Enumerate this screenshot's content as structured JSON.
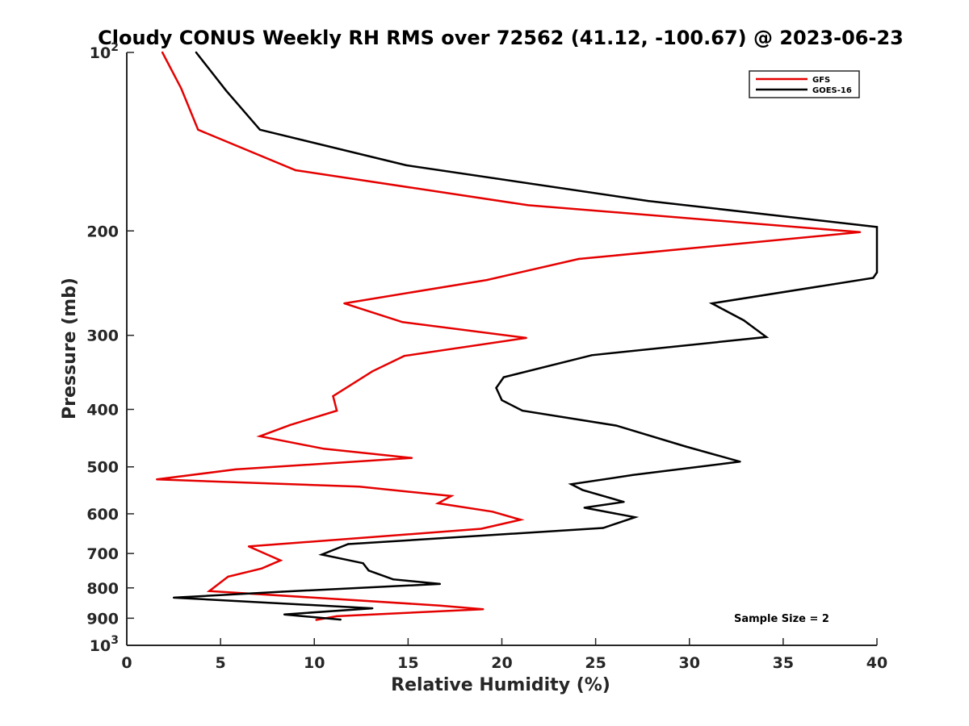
{
  "chart_data": {
    "type": "line",
    "title": "Cloudy CONUS Weekly RH RMS over 72562 (41.12, -100.67) @ 2023-06-23",
    "xlabel": "Relative Humidity (%)",
    "ylabel": "Pressure (mb)",
    "xlim": [
      0,
      40
    ],
    "ylim": [
      100,
      1000
    ],
    "y_scale": "log",
    "y_reversed": true,
    "x_ticks": [
      "0",
      "5",
      "10",
      "15",
      "20",
      "25",
      "30",
      "35",
      "40"
    ],
    "y_ticks": [
      {
        "value": 100,
        "base": "10",
        "exp": "2"
      },
      {
        "value": 200,
        "label": "200"
      },
      {
        "value": 300,
        "label": "300"
      },
      {
        "value": 400,
        "label": "400"
      },
      {
        "value": 500,
        "label": "500"
      },
      {
        "value": 600,
        "label": "600"
      },
      {
        "value": 700,
        "label": "700"
      },
      {
        "value": 800,
        "label": "800"
      },
      {
        "value": 900,
        "label": "900"
      },
      {
        "value": 1000,
        "base": "10",
        "exp": "3"
      }
    ],
    "legend_position": "top-right",
    "annotation": "Sample Size = 2",
    "series": [
      {
        "name": "GFS",
        "color": "#e50000",
        "points": [
          [
            1.9,
            100
          ],
          [
            2.9,
            115
          ],
          [
            3.8,
            135
          ],
          [
            9.0,
            158
          ],
          [
            21.4,
            181
          ],
          [
            39.1,
            201
          ],
          [
            24.1,
            223
          ],
          [
            19.2,
            242
          ],
          [
            11.6,
            265
          ],
          [
            14.7,
            285
          ],
          [
            21.3,
            303
          ],
          [
            14.8,
            325
          ],
          [
            13.1,
            345
          ],
          [
            11.0,
            380
          ],
          [
            11.2,
            402
          ],
          [
            8.7,
            425
          ],
          [
            7.1,
            444
          ],
          [
            10.5,
            466
          ],
          [
            15.2,
            483
          ],
          [
            5.8,
            505
          ],
          [
            1.6,
            525
          ],
          [
            12.4,
            540
          ],
          [
            17.3,
            560
          ],
          [
            16.6,
            576
          ],
          [
            19.5,
            595
          ],
          [
            21.0,
            614
          ],
          [
            18.9,
            636
          ],
          [
            6.5,
            681
          ],
          [
            8.2,
            719
          ],
          [
            7.2,
            742
          ],
          [
            5.4,
            766
          ],
          [
            4.4,
            810
          ],
          [
            16.7,
            857
          ],
          [
            19.0,
            869
          ],
          [
            11.2,
            893
          ],
          [
            10.1,
            906
          ]
        ]
      },
      {
        "name": "GOES-16",
        "color": "#000000",
        "points": [
          [
            3.7,
            100
          ],
          [
            5.3,
            116
          ],
          [
            7.1,
            135
          ],
          [
            14.9,
            155
          ],
          [
            27.8,
            178
          ],
          [
            40.0,
            197
          ],
          [
            40.0,
            235
          ],
          [
            39.8,
            240
          ],
          [
            31.2,
            265
          ],
          [
            32.9,
            283
          ],
          [
            34.1,
            302
          ],
          [
            24.8,
            324
          ],
          [
            20.1,
            353
          ],
          [
            19.7,
            368
          ],
          [
            20.0,
            386
          ],
          [
            21.1,
            402
          ],
          [
            26.1,
            426
          ],
          [
            29.8,
            462
          ],
          [
            32.7,
            490
          ],
          [
            27.0,
            516
          ],
          [
            23.7,
            535
          ],
          [
            24.3,
            547
          ],
          [
            26.5,
            573
          ],
          [
            24.4,
            586
          ],
          [
            27.1,
            608
          ],
          [
            25.4,
            634
          ],
          [
            11.8,
            675
          ],
          [
            10.4,
            703
          ],
          [
            12.6,
            727
          ],
          [
            12.9,
            748
          ],
          [
            14.2,
            774
          ],
          [
            16.7,
            788
          ],
          [
            8.3,
            812
          ],
          [
            2.5,
            831
          ],
          [
            13.1,
            866
          ],
          [
            8.4,
            887
          ],
          [
            11.4,
            905
          ]
        ]
      }
    ]
  }
}
